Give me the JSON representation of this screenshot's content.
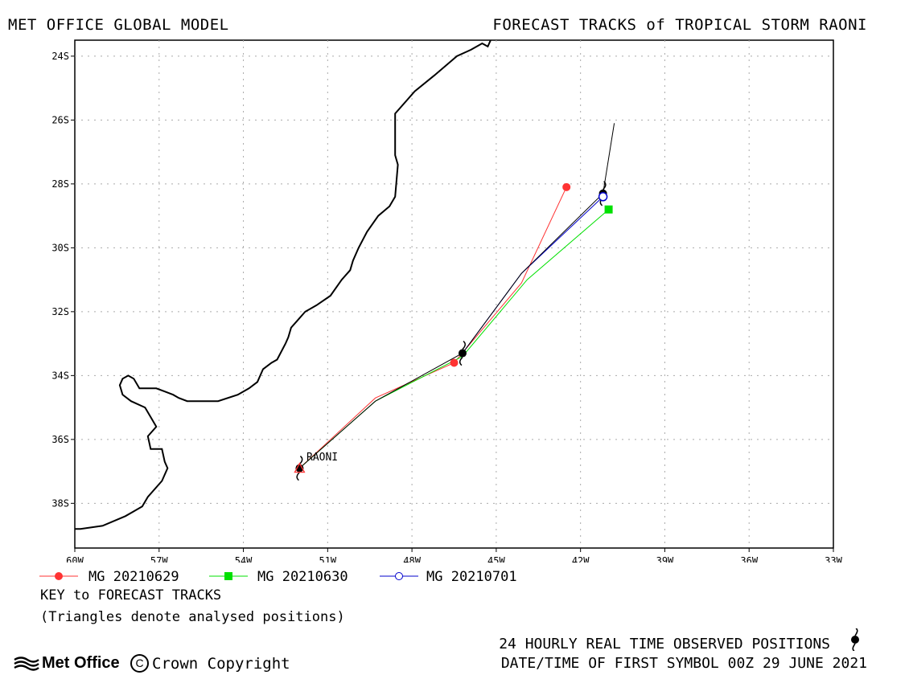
{
  "header": {
    "left": "MET OFFICE GLOBAL MODEL",
    "right": "FORECAST TRACKS of TROPICAL STORM RAONI"
  },
  "map": {
    "lon_range": [
      -60,
      -33
    ],
    "lat_range": [
      -39.4,
      -23.5
    ],
    "x_ticks": [
      {
        "value": -60,
        "label": "60W"
      },
      {
        "value": -57,
        "label": "57W"
      },
      {
        "value": -54,
        "label": "54W"
      },
      {
        "value": -51,
        "label": "51W"
      },
      {
        "value": -48,
        "label": "48W"
      },
      {
        "value": -45,
        "label": "45W"
      },
      {
        "value": -42,
        "label": "42W"
      },
      {
        "value": -39,
        "label": "39W"
      },
      {
        "value": -36,
        "label": "36W"
      },
      {
        "value": -33,
        "label": "33W"
      }
    ],
    "y_ticks": [
      {
        "value": -24,
        "label": "24S"
      },
      {
        "value": -26,
        "label": "26S"
      },
      {
        "value": -28,
        "label": "28S"
      },
      {
        "value": -30,
        "label": "30S"
      },
      {
        "value": -32,
        "label": "32S"
      },
      {
        "value": -34,
        "label": "34S"
      },
      {
        "value": -36,
        "label": "36S"
      },
      {
        "value": -38,
        "label": "38S"
      }
    ],
    "grid": "dotted",
    "coastline": [
      [
        -45.2,
        -23.5
      ],
      [
        -45.3,
        -23.7
      ],
      [
        -45.5,
        -23.6
      ],
      [
        -45.9,
        -23.8
      ],
      [
        -46.4,
        -24.0
      ],
      [
        -47.2,
        -24.6
      ],
      [
        -47.9,
        -25.1
      ],
      [
        -48.6,
        -25.8
      ],
      [
        -48.6,
        -27.1
      ],
      [
        -48.5,
        -27.4
      ],
      [
        -48.6,
        -28.4
      ],
      [
        -48.8,
        -28.7
      ],
      [
        -49.2,
        -29.0
      ],
      [
        -49.6,
        -29.5
      ],
      [
        -49.9,
        -30.0
      ],
      [
        -50.1,
        -30.4
      ],
      [
        -50.2,
        -30.7
      ],
      [
        -50.5,
        -31.0
      ],
      [
        -50.9,
        -31.5
      ],
      [
        -51.4,
        -31.8
      ],
      [
        -51.8,
        -32.0
      ],
      [
        -52.1,
        -32.3
      ],
      [
        -52.3,
        -32.5
      ],
      [
        -52.4,
        -32.8
      ],
      [
        -52.5,
        -33.0
      ],
      [
        -52.8,
        -33.5
      ],
      [
        -53.0,
        -33.6
      ],
      [
        -53.3,
        -33.8
      ],
      [
        -53.5,
        -34.2
      ],
      [
        -53.8,
        -34.4
      ],
      [
        -54.2,
        -34.6
      ],
      [
        -54.9,
        -34.8
      ],
      [
        -55.5,
        -34.8
      ],
      [
        -56.0,
        -34.8
      ],
      [
        -56.3,
        -34.7
      ],
      [
        -56.5,
        -34.6
      ],
      [
        -56.8,
        -34.5
      ],
      [
        -57.1,
        -34.4
      ],
      [
        -57.4,
        -34.4
      ],
      [
        -57.7,
        -34.4
      ],
      [
        -57.9,
        -34.1
      ],
      [
        -58.1,
        -34.0
      ],
      [
        -58.3,
        -34.1
      ],
      [
        -58.4,
        -34.3
      ],
      [
        -58.3,
        -34.6
      ],
      [
        -58.0,
        -34.8
      ],
      [
        -57.5,
        -35.0
      ],
      [
        -57.3,
        -35.3
      ],
      [
        -57.1,
        -35.6
      ],
      [
        -57.4,
        -35.9
      ],
      [
        -57.3,
        -36.3
      ],
      [
        -56.9,
        -36.3
      ],
      [
        -56.8,
        -36.7
      ],
      [
        -56.7,
        -36.9
      ],
      [
        -56.9,
        -37.3
      ],
      [
        -57.4,
        -37.8
      ],
      [
        -57.6,
        -38.1
      ],
      [
        -58.2,
        -38.4
      ],
      [
        -59.0,
        -38.7
      ],
      [
        -59.8,
        -38.8
      ],
      [
        -60.0,
        -38.8
      ]
    ]
  },
  "storm_label": "RAONI",
  "tracks": [
    {
      "name": "MG 20210629",
      "color": "#ff3333",
      "marker": "circle-filled",
      "points": [
        [
          -52.0,
          -36.9
        ],
        [
          -49.3,
          -34.7
        ],
        [
          -46.5,
          -33.6
        ],
        [
          -44.1,
          -31.1
        ],
        [
          -42.5,
          -28.1
        ]
      ],
      "symbols": [
        [
          -46.5,
          -33.6
        ],
        [
          -42.5,
          -28.1
        ]
      ]
    },
    {
      "name": "MG 20210630",
      "color": "#00e000",
      "marker": "square-filled",
      "points": [
        [
          -52.0,
          -36.9
        ],
        [
          -49.3,
          -34.8
        ],
        [
          -46.2,
          -33.4
        ],
        [
          -43.9,
          -31.0
        ],
        [
          -41.0,
          -28.8
        ]
      ],
      "symbols": [
        [
          -41.0,
          -28.8
        ]
      ]
    },
    {
      "name": "MG 20210701",
      "color": "#0000cc",
      "marker": "circle-open",
      "points": [
        [
          -46.2,
          -33.3
        ],
        [
          -44.1,
          -30.8
        ],
        [
          -41.2,
          -28.4
        ]
      ],
      "symbols": [
        [
          -41.2,
          -28.4
        ]
      ]
    }
  ],
  "observed_track": {
    "color": "#000000",
    "points": [
      [
        -52.0,
        -36.9
      ],
      [
        -49.3,
        -34.8
      ],
      [
        -46.2,
        -33.3
      ],
      [
        -44.1,
        -30.8
      ],
      [
        -41.2,
        -28.3
      ],
      [
        -40.8,
        -26.1
      ]
    ],
    "storm_symbols": [
      [
        -52.0,
        -36.9
      ],
      [
        -46.2,
        -33.3
      ],
      [
        -41.2,
        -28.3
      ]
    ],
    "analysed_triangles": [
      [
        -52.0,
        -36.9
      ]
    ]
  },
  "key": {
    "title": "KEY to FORECAST TRACKS",
    "note": "(Triangles denote analysed positions)"
  },
  "footer": {
    "logo_text": "Met Office",
    "copyright": "Crown Copyright",
    "observed_text": "24 HOURLY REAL TIME OBSERVED POSITIONS",
    "datetime_text": "DATE/TIME OF FIRST SYMBOL 00Z 29 JUNE 2021"
  }
}
